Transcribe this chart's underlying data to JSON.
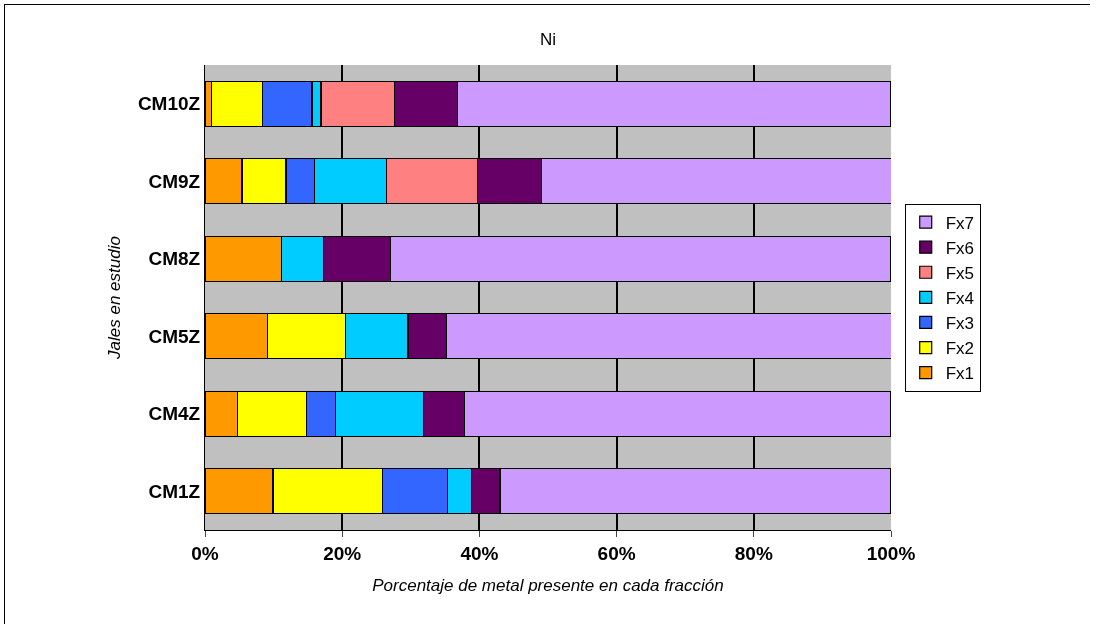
{
  "chart_data": {
    "type": "bar",
    "orientation": "horizontal",
    "stacked": true,
    "title": "Ni",
    "xlabel": "Porcentaje de metal presente en cada fracción",
    "ylabel": "Jales en estudio",
    "categories": [
      "CM10Z",
      "CM9Z",
      "CM8Z",
      "CM5Z",
      "CM4Z",
      "CM1Z"
    ],
    "series": [
      {
        "name": "Fx1",
        "color": "#ff9900",
        "values": [
          0.9,
          5.4,
          11.1,
          9.1,
          4.7,
          9.9
        ]
      },
      {
        "name": "Fx2",
        "color": "#ffff00",
        "values": [
          7.5,
          6.4,
          0,
          11.4,
          10.1,
          16.0
        ]
      },
      {
        "name": "Fx3",
        "color": "#3366ff",
        "values": [
          7.2,
          4.2,
          0,
          0,
          4.2,
          9.5
        ]
      },
      {
        "name": "Fx4",
        "color": "#00ccff",
        "values": [
          1.3,
          10.5,
          6.2,
          9.1,
          12.8,
          3.4
        ]
      },
      {
        "name": "Fx5",
        "color": "#ff8080",
        "values": [
          10.7,
          13.2,
          0,
          0,
          0,
          0
        ]
      },
      {
        "name": "Fx6",
        "color": "#660066",
        "values": [
          9.2,
          9.3,
          9.7,
          5.6,
          6.0,
          4.2
        ]
      },
      {
        "name": "Fx7",
        "color": "#cc99ff",
        "values": [
          63.1,
          51.1,
          73.0,
          64.9,
          62.2,
          57.0
        ]
      }
    ],
    "xlim": [
      0,
      100
    ],
    "xticks": [
      {
        "value": 0,
        "label": "0%"
      },
      {
        "value": 20,
        "label": "20%"
      },
      {
        "value": 40,
        "label": "40%"
      },
      {
        "value": 60,
        "label": "60%"
      },
      {
        "value": 80,
        "label": "80%"
      },
      {
        "value": 100,
        "label": "100%"
      }
    ],
    "grid": "x",
    "legend": "right"
  }
}
